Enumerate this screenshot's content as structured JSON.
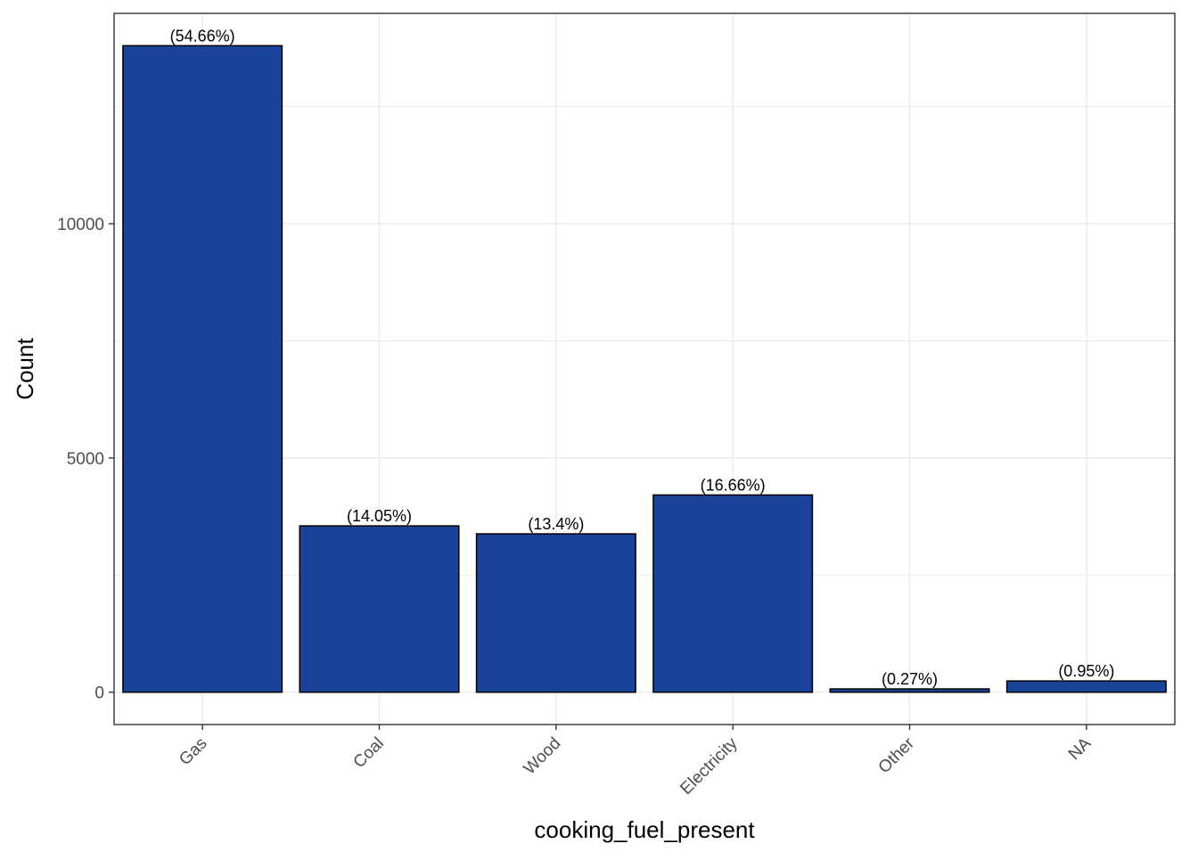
{
  "chart_data": {
    "type": "bar",
    "categories": [
      "Gas",
      "Coal",
      "Wood",
      "Electricity",
      "Other",
      "NA"
    ],
    "values": [
      13800,
      3550,
      3380,
      4210,
      70,
      240
    ],
    "labels": [
      "(54.66%)",
      "(14.05%)",
      "(13.4%)",
      "(16.66%)",
      "(0.27%)",
      "(0.95%)"
    ],
    "xlabel": "cooking_fuel_present",
    "ylabel": "Count",
    "yticks": [
      0,
      5000,
      10000
    ],
    "ylim": [
      -690,
      14490
    ],
    "grid": true,
    "legend": "none",
    "colors": {
      "bar_fill": "#1A4399",
      "bar_stroke": "#000000",
      "grid": "#EBEBEB",
      "panel_border": "#333333",
      "tick_text": "#4D4D4D"
    }
  }
}
